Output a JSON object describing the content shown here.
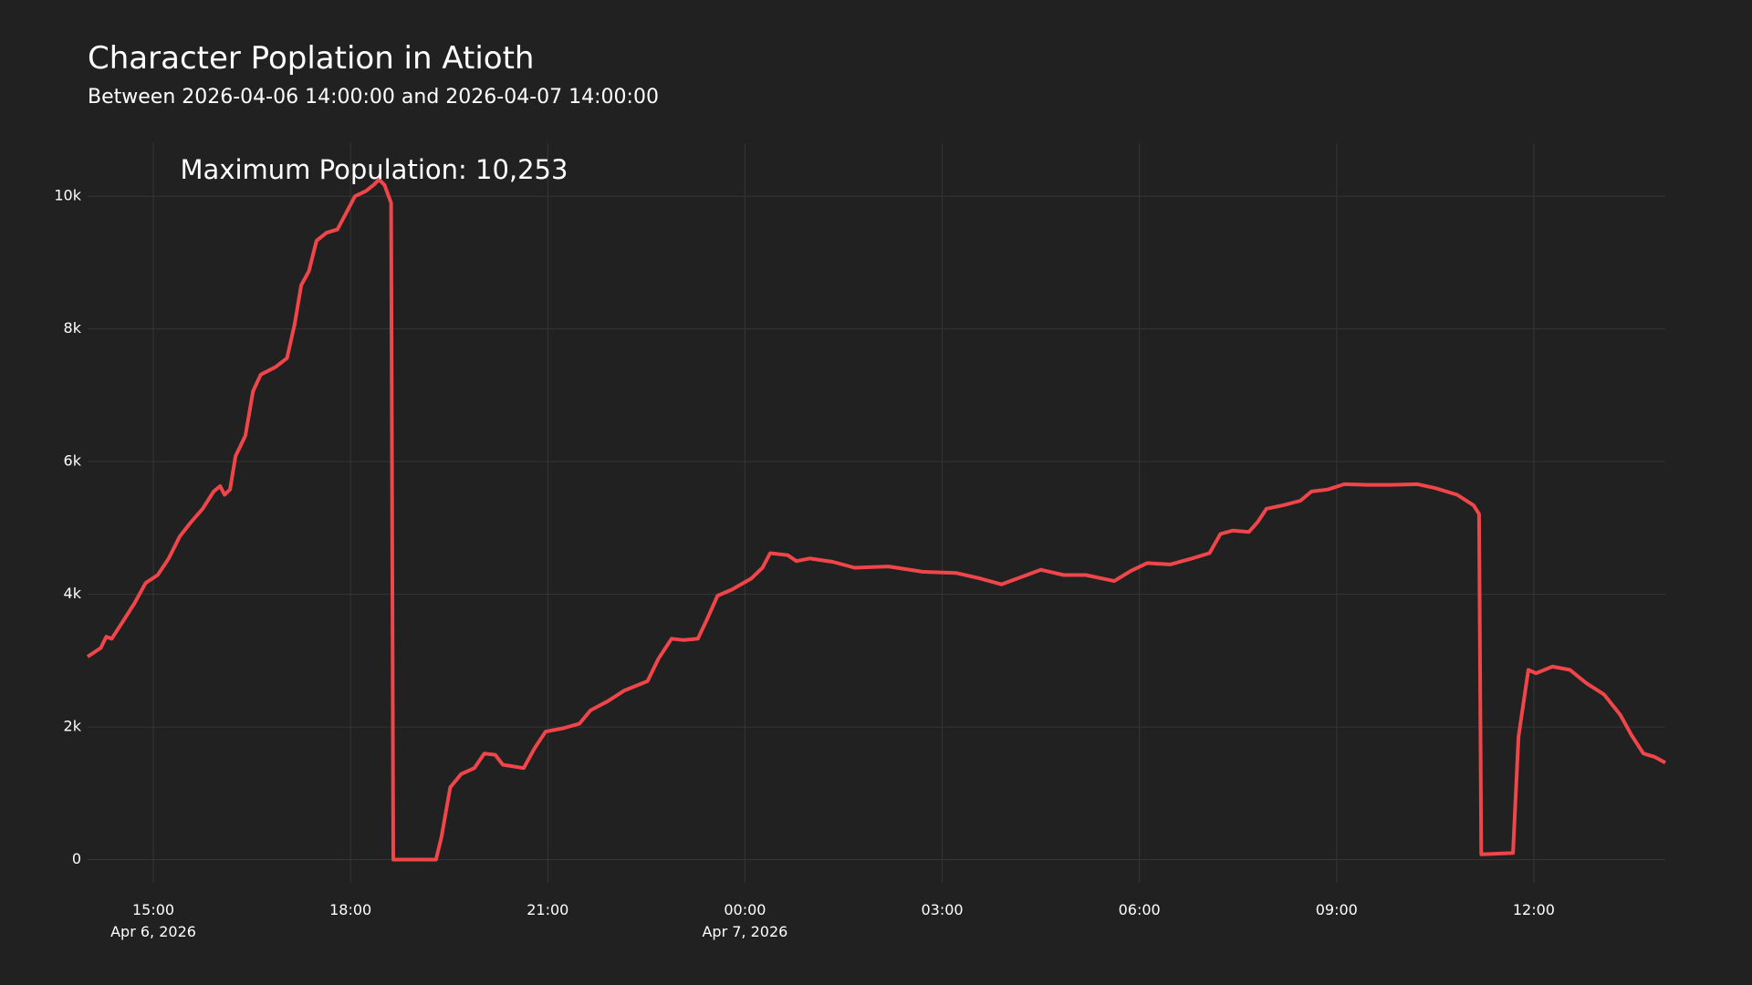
{
  "chart_data": {
    "type": "line",
    "title": "Character Poplation in Atioth",
    "subtitle": "Between 2026-04-06 14:00:00 and 2026-04-07 14:00:00",
    "annotations": [
      {
        "text": "Maximum Population: 10,253"
      }
    ],
    "color": "#f0464a",
    "grid": true,
    "x": [
      "2026-04-06 14:00",
      "2026-04-06 14:12",
      "2026-04-06 14:17",
      "2026-04-06 14:22",
      "2026-04-06 14:33",
      "2026-04-06 14:43",
      "2026-04-06 14:53",
      "2026-04-06 15:04",
      "2026-04-06 15:14",
      "2026-04-06 15:24",
      "2026-04-06 15:34",
      "2026-04-06 15:45",
      "2026-04-06 15:55",
      "2026-04-06 16:01",
      "2026-04-06 16:05",
      "2026-04-06 16:10",
      "2026-04-06 16:15",
      "2026-04-06 16:24",
      "2026-04-06 16:31",
      "2026-04-06 16:38",
      "2026-04-06 16:52",
      "2026-04-06 17:02",
      "2026-04-06 17:09",
      "2026-04-06 17:15",
      "2026-04-06 17:22",
      "2026-04-06 17:29",
      "2026-04-06 17:38",
      "2026-04-06 17:48",
      "2026-04-06 17:56",
      "2026-04-06 18:04",
      "2026-04-06 18:14",
      "2026-04-06 18:21",
      "2026-04-06 18:26",
      "2026-04-06 18:31",
      "2026-04-06 18:37",
      "2026-04-06 18:39",
      "2026-04-06 19:18",
      "2026-04-06 19:23",
      "2026-04-06 19:31",
      "2026-04-06 19:41",
      "2026-04-06 19:53",
      "2026-04-06 20:02",
      "2026-04-06 20:12",
      "2026-04-06 20:19",
      "2026-04-06 20:38",
      "2026-04-06 20:48",
      "2026-04-06 20:58",
      "2026-04-06 21:14",
      "2026-04-06 21:29",
      "2026-04-06 21:39",
      "2026-04-06 21:55",
      "2026-04-06 22:10",
      "2026-04-06 22:31",
      "2026-04-06 22:41",
      "2026-04-06 22:53",
      "2026-04-06 23:04",
      "2026-04-06 23:17",
      "2026-04-06 23:25",
      "2026-04-06 23:35",
      "2026-04-06 23:48",
      "2026-04-07 00:06",
      "2026-04-07 00:16",
      "2026-04-07 00:23",
      "2026-04-07 00:39",
      "2026-04-07 00:47",
      "2026-04-07 00:59",
      "2026-04-07 01:20",
      "2026-04-07 01:40",
      "2026-04-07 02:11",
      "2026-04-07 02:42",
      "2026-04-07 03:13",
      "2026-04-07 03:34",
      "2026-04-07 03:54",
      "2026-04-07 04:09",
      "2026-04-07 04:30",
      "2026-04-07 04:51",
      "2026-04-07 05:11",
      "2026-04-07 05:37",
      "2026-04-07 05:52",
      "2026-04-07 06:07",
      "2026-04-07 06:28",
      "2026-04-07 06:48",
      "2026-04-07 07:04",
      "2026-04-07 07:14",
      "2026-04-07 07:25",
      "2026-04-07 07:40",
      "2026-04-07 07:48",
      "2026-04-07 07:56",
      "2026-04-07 08:11",
      "2026-04-07 08:27",
      "2026-04-07 08:37",
      "2026-04-07 08:52",
      "2026-04-07 09:07",
      "2026-04-07 09:28",
      "2026-04-07 09:48",
      "2026-04-07 10:14",
      "2026-04-07 10:30",
      "2026-04-07 10:50",
      "2026-04-07 11:05",
      "2026-04-07 11:10",
      "2026-04-07 11:12",
      "2026-04-07 11:41",
      "2026-04-07 11:46",
      "2026-04-07 11:55",
      "2026-04-07 12:02",
      "2026-04-07 12:17",
      "2026-04-07 12:33",
      "2026-04-07 12:48",
      "2026-04-07 13:04",
      "2026-04-07 13:19",
      "2026-04-07 13:29",
      "2026-04-07 13:40",
      "2026-04-07 13:50",
      "2026-04-07 14:00"
    ],
    "values": [
      3060,
      3190,
      3360,
      3330,
      3610,
      3870,
      4170,
      4290,
      4540,
      4870,
      5080,
      5290,
      5550,
      5630,
      5500,
      5580,
      6080,
      6390,
      7060,
      7310,
      7430,
      7560,
      8070,
      8660,
      8870,
      9330,
      9450,
      9500,
      9750,
      10000,
      10080,
      10170,
      10253,
      10170,
      9900,
      0,
      0,
      340,
      1090,
      1290,
      1380,
      1600,
      1580,
      1430,
      1380,
      1680,
      1930,
      1980,
      2050,
      2250,
      2390,
      2550,
      2690,
      3030,
      3330,
      3310,
      3330,
      3610,
      3980,
      4070,
      4240,
      4400,
      4620,
      4590,
      4500,
      4540,
      4490,
      4400,
      4420,
      4340,
      4320,
      4240,
      4150,
      4240,
      4370,
      4290,
      4290,
      4200,
      4350,
      4470,
      4450,
      4540,
      4620,
      4910,
      4960,
      4940,
      5090,
      5290,
      5340,
      5410,
      5550,
      5580,
      5660,
      5650,
      5650,
      5660,
      5600,
      5500,
      5340,
      5210,
      80,
      100,
      1850,
      2860,
      2810,
      2910,
      2860,
      2660,
      2490,
      2180,
      1880,
      1600,
      1550,
      1460
    ],
    "xlim": [
      "2026-04-06 14:00",
      "2026-04-07 14:00"
    ],
    "xticks": [
      {
        "value": "2026-04-06 15:00",
        "label": "15:00\nApr 6, 2026"
      },
      {
        "value": "2026-04-06 18:00",
        "label": "18:00"
      },
      {
        "value": "2026-04-06 21:00",
        "label": "21:00"
      },
      {
        "value": "2026-04-07 00:00",
        "label": "00:00\nApr 7, 2026"
      },
      {
        "value": "2026-04-07 03:00",
        "label": "03:00"
      },
      {
        "value": "2026-04-07 06:00",
        "label": "06:00"
      },
      {
        "value": "2026-04-07 09:00",
        "label": "09:00"
      },
      {
        "value": "2026-04-07 12:00",
        "label": "12:00"
      }
    ],
    "ylim": [
      -350,
      10800
    ],
    "yticks": [
      0,
      {
        "value": 2000,
        "label": "2k"
      },
      {
        "value": 4000,
        "label": "4k"
      },
      {
        "value": 6000,
        "label": "6k"
      },
      {
        "value": 8000,
        "label": "8k"
      },
      {
        "value": 10000,
        "label": "10k"
      }
    ]
  }
}
